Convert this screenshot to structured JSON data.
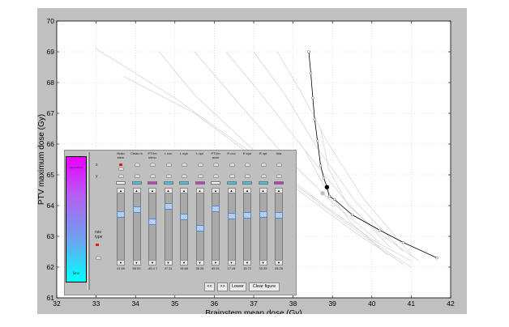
{
  "figure": {
    "xlabel": "Brainstem mean dose (Gy)",
    "ylabel": "PTV maximum dose (Gy)",
    "x_ticks": [
      "32",
      "33",
      "34",
      "35",
      "36",
      "37",
      "38",
      "39",
      "40",
      "41",
      "42"
    ],
    "y_ticks": [
      "61",
      "62",
      "63",
      "64",
      "65",
      "66",
      "67",
      "68",
      "69",
      "70"
    ]
  },
  "chart_data": {
    "type": "line",
    "xlim": [
      32,
      42
    ],
    "ylim": [
      61,
      70
    ],
    "grid": true,
    "series": [
      {
        "x": [
          38.4,
          38.45,
          38.5,
          38.55,
          38.62,
          38.7,
          38.78,
          38.86,
          38.92,
          39.05,
          39.5,
          40.2,
          40.8,
          41.65
        ],
        "y": [
          69.0,
          68.3,
          67.5,
          66.8,
          66.1,
          65.3,
          64.9,
          64.6,
          64.3,
          64.2,
          63.7,
          63.2,
          62.8,
          62.3
        ],
        "color": "#000000"
      }
    ],
    "highlight_points": [
      {
        "x": 38.86,
        "y": 64.6,
        "color": "#000000"
      },
      {
        "x": 38.75,
        "y": 64.4,
        "color": "#bdbdbd"
      }
    ],
    "background_curves": [
      {
        "x": [
          33.0,
          35.0,
          37.5,
          39.8,
          41.0
        ],
        "y": [
          69.1,
          67.5,
          65.2,
          63.0,
          62.0
        ]
      },
      {
        "x": [
          33.7,
          35.5,
          37.6,
          39.6,
          40.8
        ],
        "y": [
          68.2,
          67.0,
          65.0,
          63.1,
          62.1
        ]
      },
      {
        "x": [
          34.6,
          35.5,
          37.0,
          38.8,
          40.0,
          41.0
        ],
        "y": [
          69.0,
          67.6,
          65.8,
          64.0,
          62.9,
          62.2
        ]
      },
      {
        "x": [
          35.5,
          36.5,
          37.8,
          39.0,
          40.2
        ],
        "y": [
          69.0,
          67.5,
          65.6,
          64.1,
          62.8
        ]
      },
      {
        "x": [
          36.3,
          37.2,
          38.3,
          39.3,
          40.5
        ],
        "y": [
          69.0,
          67.6,
          65.8,
          64.2,
          62.6
        ]
      },
      {
        "x": [
          37.0,
          37.8,
          38.6,
          39.6,
          40.8
        ],
        "y": [
          69.0,
          67.6,
          65.9,
          64.1,
          62.5
        ]
      },
      {
        "x": [
          37.6,
          38.2,
          38.9,
          39.8,
          41.0
        ],
        "y": [
          69.0,
          67.7,
          66.0,
          64.2,
          62.4
        ]
      },
      {
        "x": [
          38.7,
          38.9,
          39.4,
          40.3,
          41.2
        ],
        "y": [
          66.5,
          65.2,
          64.0,
          63.0,
          62.2
        ]
      },
      {
        "x": [
          38.3,
          38.8,
          39.5,
          40.4
        ],
        "y": [
          65.8,
          64.6,
          63.4,
          62.4
        ]
      }
    ]
  },
  "navigator": {
    "colorbar_top": "aspiration",
    "colorbar_bottom": "lime",
    "row_x": "x",
    "row_y": "y",
    "nav_type": "nav type",
    "columns": [
      {
        "name": "Brain stem",
        "value": "41.65",
        "swatch": "#ffffff",
        "pos": 0.7,
        "x": true
      },
      {
        "name": "Chias m",
        "value": "56.03",
        "swatch": "#33ccee",
        "pos": 0.78,
        "x": false
      },
      {
        "name": "PTVm inimu",
        "value": "-45.4 7",
        "swatch": "#cc33cc",
        "pos": 0.58,
        "x": false
      },
      {
        "name": "L coc",
        "value": "47.11",
        "swatch": "#33ccee",
        "pos": 0.84,
        "x": false
      },
      {
        "name": "L eye",
        "value": "15.68",
        "swatch": "#33ccee",
        "pos": 0.66,
        "x": false
      },
      {
        "name": "L opt",
        "value": "38.26",
        "swatch": "#cc33cc",
        "pos": 0.48,
        "x": false
      },
      {
        "name": "PTVm axim",
        "value": "65.51",
        "swatch": "#ffffff",
        "pos": 0.8,
        "x": false
      },
      {
        "name": "R coc",
        "value": "17.44",
        "swatch": "#33ccee",
        "pos": 0.68,
        "x": false
      },
      {
        "name": "R eye",
        "value": "15.72",
        "swatch": "#33ccee",
        "pos": 0.69,
        "x": false
      },
      {
        "name": "R opt",
        "value": "32.25",
        "swatch": "#33ccee",
        "pos": 0.71,
        "x": false
      },
      {
        "name": "rida",
        "value": "28.26",
        "swatch": "#cc33cc",
        "pos": 0.69,
        "x": false
      }
    ],
    "buttons": {
      "prev": "<<",
      "next": ">>",
      "lower": "Lower",
      "clear": "Clear figure"
    }
  }
}
